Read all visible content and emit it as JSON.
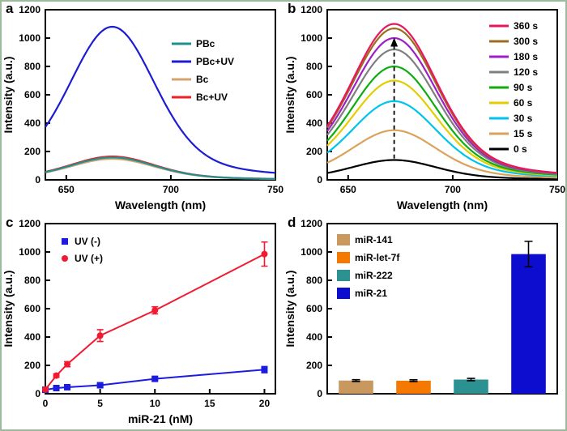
{
  "figure": {
    "background": "#ffffff",
    "border_color": "#9cbb9c"
  },
  "panels": [
    {
      "label": "a"
    },
    {
      "label": "b"
    },
    {
      "label": "c"
    },
    {
      "label": "d"
    }
  ],
  "chart_data": [
    {
      "id": "a",
      "type": "spectra",
      "xlabel": "Wavelength (nm)",
      "ylabel": "Intensity (a.u.)",
      "xlim": [
        640,
        750
      ],
      "ylim": [
        0,
        1200
      ],
      "xticks": [
        650,
        700,
        750
      ],
      "yticks": [
        0,
        200,
        400,
        600,
        800,
        1000,
        1200
      ],
      "peak_wavelength": 672,
      "legend_position": "top-right",
      "series": [
        {
          "name": "PBc",
          "color": "#1f9090",
          "peak_intensity": 158
        },
        {
          "name": "PBc+UV",
          "color": "#1c1cd2",
          "peak_intensity": 1080
        },
        {
          "name": "Bc",
          "color": "#d5a470",
          "peak_intensity": 148
        },
        {
          "name": "Bc+UV",
          "color": "#ee2128",
          "peak_intensity": 165
        }
      ],
      "draw_order": [
        1,
        3,
        2,
        0
      ]
    },
    {
      "id": "b",
      "type": "spectra",
      "xlabel": "Wavelength (nm)",
      "ylabel": "Intensity (a.u.)",
      "xlim": [
        640,
        750
      ],
      "ylim": [
        0,
        1200
      ],
      "xticks": [
        650,
        700,
        750
      ],
      "yticks": [
        0,
        200,
        400,
        600,
        800,
        1000,
        1200
      ],
      "peak_wavelength": 672,
      "legend_position": "top-right",
      "annotation": {
        "type": "dashed-arrow",
        "x": 672,
        "y_from": 150,
        "y_to": 940
      },
      "series": [
        {
          "name": "360 s",
          "color": "#e8175d",
          "peak_intensity": 1100
        },
        {
          "name": "300 s",
          "color": "#9c6d1f",
          "peak_intensity": 1068
        },
        {
          "name": "180 s",
          "color": "#a21cc8",
          "peak_intensity": 1000
        },
        {
          "name": "120 s",
          "color": "#7f7f7f",
          "peak_intensity": 920
        },
        {
          "name": "90 s",
          "color": "#0ead0e",
          "peak_intensity": 800
        },
        {
          "name": "60 s",
          "color": "#e3cd00",
          "peak_intensity": 700
        },
        {
          "name": "30 s",
          "color": "#00c3ee",
          "peak_intensity": 555
        },
        {
          "name": "15 s",
          "color": "#dba25c",
          "peak_intensity": 350
        },
        {
          "name": "0 s",
          "color": "#000000",
          "peak_intensity": 140
        }
      ],
      "draw_order": [
        8,
        7,
        6,
        5,
        4,
        3,
        2,
        1,
        0
      ]
    },
    {
      "id": "c",
      "type": "scatter-line",
      "xlabel": "miR-21 (nM)",
      "ylabel": "Intensity (a.u.)",
      "xlim": [
        0,
        21
      ],
      "ylim": [
        0,
        1200
      ],
      "xticks": [
        0,
        5,
        10,
        15,
        20
      ],
      "yticks": [
        0,
        200,
        400,
        600,
        800,
        1000,
        1200
      ],
      "legend_position": "top-left",
      "x": [
        0,
        1,
        2,
        5,
        10,
        20
      ],
      "series": [
        {
          "name": "UV (-)",
          "color": "#1c1ce0",
          "marker": "square",
          "values": [
            28,
            40,
            46,
            60,
            105,
            170
          ],
          "errors": [
            4,
            5,
            5,
            7,
            12,
            22
          ]
        },
        {
          "name": "UV (+)",
          "color": "#f21a30",
          "marker": "circle",
          "values": [
            30,
            128,
            208,
            410,
            588,
            985
          ],
          "errors": [
            6,
            12,
            18,
            42,
            25,
            85
          ]
        }
      ]
    },
    {
      "id": "d",
      "type": "bar",
      "xlabel": "",
      "ylabel": "Intensity (a.u.)",
      "xlim": [
        0,
        4
      ],
      "ylim": [
        0,
        1200
      ],
      "xticks": [],
      "yticks": [
        0,
        200,
        400,
        600,
        800,
        1000,
        1200
      ],
      "legend_position": "top-left",
      "categories": [
        "miR-141",
        "miR-let-7f",
        "miR-222",
        "miR-21"
      ],
      "values": [
        93,
        92,
        100,
        985
      ],
      "errors": [
        6,
        6,
        8,
        90
      ],
      "colors": [
        "#c9985f",
        "#f57900",
        "#2b9191",
        "#0d0dd0"
      ]
    }
  ]
}
